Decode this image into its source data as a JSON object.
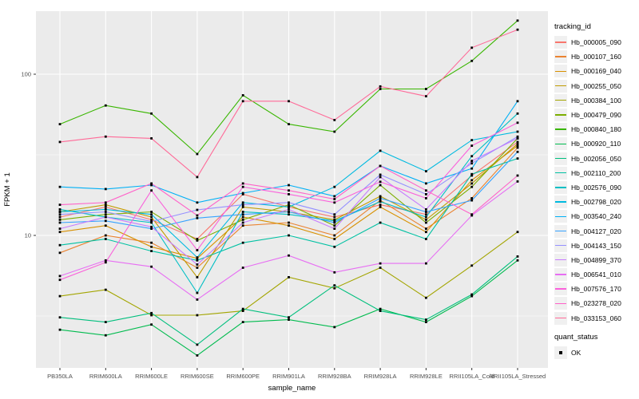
{
  "chart_data": {
    "type": "line",
    "title": "",
    "xlabel": "sample_name",
    "ylabel": "FPKM + 1",
    "yscale": "log10",
    "ytick_labels": [
      "10",
      "100"
    ],
    "ytick_values": [
      10,
      100
    ],
    "minor_ytick_values": [
      3.162,
      31.62
    ],
    "ylim": [
      1.5,
      250
    ],
    "grid": true,
    "panel_bg": "#EBEBEB",
    "grid_color": "#FFFFFF",
    "point_color": "#000000",
    "categories": [
      "PB350LA",
      "RRIM600LA",
      "RRIM600LE",
      "RRIM600SE",
      "RRIM600PE",
      "RRIM901LA",
      "RRIM928BA",
      "RRIM928LA",
      "RRIM928LE",
      "RRII105LA_Cold",
      "RRII105LA_Stressed"
    ],
    "series": [
      {
        "tracking_id": "Hb_000005_090",
        "color": "#F8766D",
        "values": [
          13,
          15,
          12.5,
          9.5,
          18,
          15,
          13,
          15.5,
          13.5,
          23.5,
          38
        ]
      },
      {
        "tracking_id": "Hb_000107_160",
        "color": "#EA8331",
        "values": [
          7.8,
          10,
          9,
          6.3,
          11.5,
          12,
          10,
          16.5,
          11,
          17,
          35
        ]
      },
      {
        "tracking_id": "Hb_000169_040",
        "color": "#D89000",
        "values": [
          10.5,
          11.5,
          8.5,
          7.2,
          13,
          11.5,
          9.5,
          15,
          10.5,
          22,
          36
        ]
      },
      {
        "tracking_id": "Hb_000255_050",
        "color": "#C09B00",
        "values": [
          14,
          15.5,
          13,
          5.5,
          15,
          14,
          12.5,
          17.5,
          12.5,
          21,
          37
        ]
      },
      {
        "tracking_id": "Hb_000384_100",
        "color": "#A3A500",
        "values": [
          4.2,
          4.6,
          3.2,
          3.2,
          3.4,
          5.5,
          4.7,
          6.3,
          4.1,
          6.5,
          10.5
        ]
      },
      {
        "tracking_id": "Hb_000479_090",
        "color": "#7CAE00",
        "values": [
          12.5,
          13.5,
          14,
          9.3,
          12.5,
          15.5,
          11.5,
          20.5,
          12,
          20,
          40
        ]
      },
      {
        "tracking_id": "Hb_000840_180",
        "color": "#39B600",
        "values": [
          49,
          64,
          57,
          32,
          74,
          49,
          44,
          81,
          81,
          121,
          215
        ]
      },
      {
        "tracking_id": "Hb_000920_110",
        "color": "#00BB4E",
        "values": [
          2.6,
          2.4,
          2.8,
          1.8,
          2.9,
          3.0,
          2.7,
          3.5,
          2.9,
          4.2,
          7.0
        ]
      },
      {
        "tracking_id": "Hb_002056_050",
        "color": "#00BF7D",
        "values": [
          3.1,
          2.9,
          3.3,
          2.1,
          3.5,
          3.1,
          4.9,
          3.4,
          3.0,
          4.3,
          7.4
        ]
      },
      {
        "tracking_id": "Hb_002110_200",
        "color": "#00C1A3",
        "values": [
          8.7,
          9.5,
          8.0,
          7.0,
          9.0,
          10,
          8.5,
          12,
          9.5,
          24,
          30
        ]
      },
      {
        "tracking_id": "Hb_002576_090",
        "color": "#00BFC4",
        "values": [
          14.5,
          13,
          12,
          4.4,
          14,
          13.5,
          12.3,
          16.2,
          13,
          31,
          57
        ]
      },
      {
        "tracking_id": "Hb_002798_020",
        "color": "#00BAE0",
        "values": [
          14,
          14.5,
          13.5,
          7.3,
          16,
          15,
          20,
          33.5,
          25,
          39,
          44
        ]
      },
      {
        "tracking_id": "Hb_003540_240",
        "color": "#00B0F6",
        "values": [
          20,
          19.4,
          20.5,
          16,
          18.3,
          20.5,
          17.5,
          27,
          21,
          26,
          68
        ]
      },
      {
        "tracking_id": "Hb_004127_020",
        "color": "#35A2FF",
        "values": [
          12,
          12.3,
          11,
          12.8,
          13.5,
          14,
          12,
          17,
          14,
          16.5,
          33
        ]
      },
      {
        "tracking_id": "Hb_004143_150",
        "color": "#9590FF",
        "values": [
          13.5,
          14,
          12.2,
          14.4,
          15.5,
          16,
          13.5,
          23.8,
          18,
          28,
          41
        ]
      },
      {
        "tracking_id": "Hb_004899_370",
        "color": "#C77CFF",
        "values": [
          11,
          13,
          11.3,
          6.6,
          12,
          14.5,
          11,
          23,
          14.5,
          29,
          40
        ]
      },
      {
        "tracking_id": "Hb_006541_010",
        "color": "#E76EF3",
        "values": [
          5.6,
          7.0,
          6.4,
          4.0,
          6.3,
          7.5,
          5.9,
          6.7,
          6.7,
          13.3,
          21.6
        ]
      },
      {
        "tracking_id": "Hb_007576_170",
        "color": "#FA62DB",
        "values": [
          5.3,
          6.8,
          19,
          8.1,
          20,
          18,
          16,
          21.5,
          17,
          36,
          50
        ]
      },
      {
        "tracking_id": "Hb_023278_020",
        "color": "#FF61C9",
        "values": [
          15.5,
          16,
          21,
          13.3,
          21,
          19,
          16.8,
          27,
          19,
          13.5,
          23.5
        ]
      },
      {
        "tracking_id": "Hb_033153_060",
        "color": "#FF6A98",
        "values": [
          38,
          41,
          40,
          23,
          68,
          68,
          52,
          84,
          73,
          146,
          189
        ]
      }
    ]
  },
  "legend": {
    "tracking_title": "tracking_id",
    "quant_title": "quant_status",
    "quant_entries": [
      {
        "label": "OK"
      }
    ]
  }
}
